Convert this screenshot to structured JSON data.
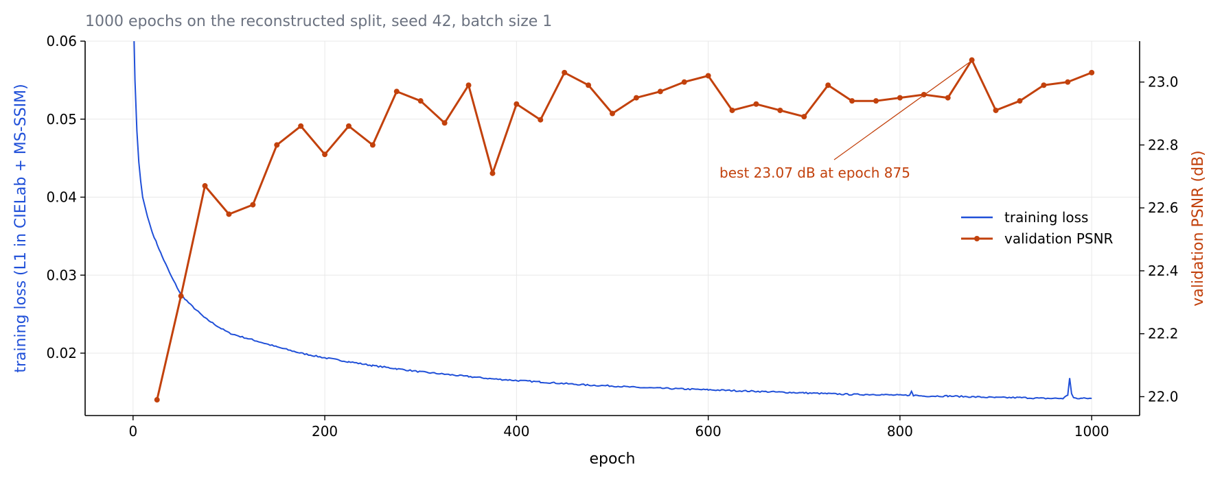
{
  "chart_data": {
    "type": "line",
    "subtitle": "1000 epochs on the reconstructed split, seed 42, batch size 1",
    "xlabel": "epoch",
    "ylabel_left": "training loss  (L1 in CIELab + MS-SSIM)",
    "ylabel_right": "validation PSNR (dB)",
    "xlim": [
      -50,
      1050
    ],
    "ylim_left": [
      0.012,
      0.06
    ],
    "ylim_right": [
      21.94,
      23.13
    ],
    "x_ticks": [
      0,
      200,
      400,
      600,
      800,
      1000
    ],
    "x_tick_labels": [
      "0",
      "200",
      "400",
      "600",
      "800",
      "1000"
    ],
    "y_left_ticks": [
      0.02,
      0.03,
      0.04,
      0.05,
      0.06
    ],
    "y_left_tick_labels": [
      "0.02",
      "0.03",
      "0.04",
      "0.05",
      "0.06"
    ],
    "y_right_ticks": [
      22.0,
      22.2,
      22.4,
      22.6,
      22.8,
      23.0
    ],
    "y_right_tick_labels": [
      "22.0",
      "22.2",
      "22.4",
      "22.6",
      "22.8",
      "23.0"
    ],
    "grid": true,
    "legend_position": "center-right",
    "series": [
      {
        "name": "training loss",
        "axis": "left",
        "color": "#1f4fd8",
        "x": [
          1,
          2,
          4,
          6,
          8,
          10,
          15,
          20,
          25,
          30,
          40,
          50,
          60,
          75,
          90,
          100,
          110,
          125,
          150,
          175,
          200,
          225,
          250,
          275,
          300,
          325,
          350,
          375,
          400,
          425,
          450,
          475,
          500,
          525,
          550,
          575,
          600,
          625,
          650,
          675,
          700,
          725,
          750,
          775,
          800,
          810,
          812,
          814,
          825,
          850,
          875,
          900,
          925,
          950,
          970,
          975,
          977,
          979,
          981,
          985,
          990,
          1000
        ],
        "values": [
          0.0605,
          0.055,
          0.0485,
          0.0445,
          0.042,
          0.04,
          0.0375,
          0.0355,
          0.034,
          0.0325,
          0.0298,
          0.0275,
          0.0262,
          0.0245,
          0.0233,
          0.0226,
          0.0222,
          0.0217,
          0.0208,
          0.02,
          0.0194,
          0.0189,
          0.0184,
          0.018,
          0.0176,
          0.0173,
          0.017,
          0.0167,
          0.0165,
          0.0163,
          0.0161,
          0.0159,
          0.0158,
          0.0156,
          0.0155,
          0.0154,
          0.0153,
          0.0152,
          0.0151,
          0.015,
          0.0149,
          0.0148,
          0.0147,
          0.0147,
          0.0146,
          0.0146,
          0.0151,
          0.0146,
          0.0145,
          0.0145,
          0.0144,
          0.0143,
          0.0143,
          0.0142,
          0.0142,
          0.0146,
          0.0168,
          0.0148,
          0.0143,
          0.0142,
          0.0142,
          0.0142
        ]
      },
      {
        "name": "validation PSNR",
        "axis": "right",
        "color": "#c2410c",
        "marker": "circle",
        "x": [
          25,
          50,
          75,
          100,
          125,
          150,
          175,
          200,
          225,
          250,
          275,
          300,
          325,
          350,
          375,
          400,
          425,
          450,
          475,
          500,
          525,
          550,
          575,
          600,
          625,
          650,
          675,
          700,
          725,
          750,
          775,
          800,
          825,
          850,
          875,
          900,
          925,
          950,
          975,
          1000
        ],
        "values": [
          21.99,
          22.32,
          22.67,
          22.58,
          22.61,
          22.8,
          22.86,
          22.77,
          22.86,
          22.8,
          22.97,
          22.94,
          22.87,
          22.99,
          22.71,
          22.93,
          22.88,
          23.03,
          22.99,
          22.9,
          22.95,
          22.97,
          23.0,
          23.02,
          22.91,
          22.93,
          22.91,
          22.89,
          22.99,
          22.94,
          22.94,
          22.95,
          22.96,
          22.95,
          23.07,
          22.91,
          22.94,
          22.99,
          23.0,
          23.03
        ]
      }
    ],
    "annotations": [
      {
        "text": "best 23.07 dB at epoch 875",
        "point": {
          "x": 875,
          "y": 23.07
        },
        "axis": "right"
      }
    ]
  }
}
